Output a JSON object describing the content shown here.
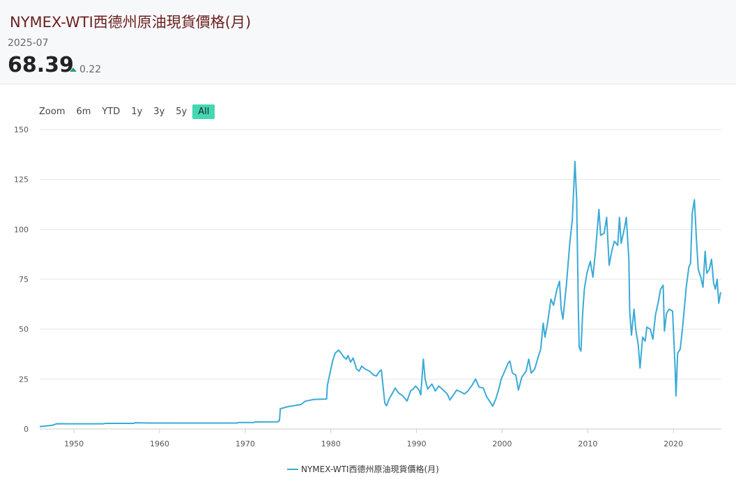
{
  "header": {
    "title": "NYMEX-WTI西德州原油現貨價格(月)",
    "period": "2025-07",
    "price": "68.39",
    "change": "0.22",
    "change_direction": "up",
    "up_color": "#20a06b"
  },
  "range_selector": {
    "zoom_label": "Zoom",
    "buttons": [
      "6m",
      "YTD",
      "1y",
      "3y",
      "5y",
      "All"
    ],
    "active": "All",
    "active_color": "#43d7b4"
  },
  "chart_data": {
    "type": "line",
    "title": "",
    "xlabel": "",
    "ylabel": "",
    "xlim": [
      1946,
      2025.6
    ],
    "ylim": [
      0,
      150
    ],
    "x_ticks": [
      1950,
      1960,
      1970,
      1980,
      1990,
      2000,
      2010,
      2020
    ],
    "y_ticks": [
      0,
      25,
      50,
      75,
      100,
      125,
      150
    ],
    "grid": "horizontal",
    "legend_position": "bottom-center",
    "series": [
      {
        "name": "NYMEX-WTI西德州原油現貨價格(月)",
        "color": "#3aaad6",
        "points": [
          [
            1946.0,
            1.17
          ],
          [
            1947.0,
            1.6
          ],
          [
            1947.5,
            1.9
          ],
          [
            1948.0,
            2.6
          ],
          [
            1950.0,
            2.57
          ],
          [
            1953.5,
            2.57
          ],
          [
            1953.6,
            2.8
          ],
          [
            1957.0,
            2.8
          ],
          [
            1957.1,
            3.09
          ],
          [
            1959.0,
            2.97
          ],
          [
            1969.0,
            2.97
          ],
          [
            1969.2,
            3.2
          ],
          [
            1971.0,
            3.2
          ],
          [
            1971.1,
            3.5
          ],
          [
            1973.8,
            3.6
          ],
          [
            1974.0,
            4.3
          ],
          [
            1974.1,
            10.1
          ],
          [
            1975.0,
            11.2
          ],
          [
            1976.5,
            12.2
          ],
          [
            1977.0,
            13.9
          ],
          [
            1978.0,
            14.8
          ],
          [
            1979.5,
            15.0
          ],
          [
            1979.6,
            22.0
          ],
          [
            1979.9,
            28.0
          ],
          [
            1980.2,
            34.0
          ],
          [
            1980.5,
            38.0
          ],
          [
            1980.9,
            39.5
          ],
          [
            1981.2,
            38.0
          ],
          [
            1981.5,
            36.0
          ],
          [
            1981.8,
            35.0
          ],
          [
            1982.0,
            36.8
          ],
          [
            1982.3,
            33.5
          ],
          [
            1982.6,
            35.5
          ],
          [
            1983.0,
            30.0
          ],
          [
            1983.3,
            29.0
          ],
          [
            1983.6,
            31.5
          ],
          [
            1984.0,
            30.0
          ],
          [
            1984.5,
            29.0
          ],
          [
            1985.0,
            27.0
          ],
          [
            1985.3,
            26.5
          ],
          [
            1985.7,
            29.0
          ],
          [
            1985.9,
            29.5
          ],
          [
            1986.1,
            21.0
          ],
          [
            1986.3,
            13.0
          ],
          [
            1986.5,
            11.6
          ],
          [
            1986.8,
            15.0
          ],
          [
            1987.2,
            18.0
          ],
          [
            1987.5,
            20.5
          ],
          [
            1987.9,
            18.0
          ],
          [
            1988.3,
            17.0
          ],
          [
            1988.7,
            15.0
          ],
          [
            1988.9,
            14.0
          ],
          [
            1989.3,
            19.0
          ],
          [
            1989.6,
            20.0
          ],
          [
            1989.9,
            21.5
          ],
          [
            1990.3,
            19.5
          ],
          [
            1990.5,
            17.0
          ],
          [
            1990.8,
            35.0
          ],
          [
            1991.0,
            25.0
          ],
          [
            1991.3,
            20.0
          ],
          [
            1991.8,
            22.5
          ],
          [
            1992.2,
            19.0
          ],
          [
            1992.6,
            21.5
          ],
          [
            1993.0,
            20.0
          ],
          [
            1993.6,
            17.5
          ],
          [
            1993.9,
            14.5
          ],
          [
            1994.3,
            17.0
          ],
          [
            1994.7,
            19.5
          ],
          [
            1995.2,
            18.5
          ],
          [
            1995.6,
            17.5
          ],
          [
            1996.0,
            19.0
          ],
          [
            1996.5,
            22.0
          ],
          [
            1996.9,
            25.0
          ],
          [
            1997.3,
            21.0
          ],
          [
            1997.8,
            20.5
          ],
          [
            1998.2,
            16.0
          ],
          [
            1998.6,
            13.5
          ],
          [
            1998.9,
            11.4
          ],
          [
            1999.3,
            15.5
          ],
          [
            1999.6,
            20.0
          ],
          [
            1999.9,
            25.0
          ],
          [
            2000.3,
            29.0
          ],
          [
            2000.7,
            33.0
          ],
          [
            2000.9,
            34.0
          ],
          [
            2001.2,
            28.0
          ],
          [
            2001.6,
            27.0
          ],
          [
            2001.9,
            19.5
          ],
          [
            2002.3,
            26.0
          ],
          [
            2002.8,
            29.0
          ],
          [
            2003.1,
            35.0
          ],
          [
            2003.4,
            28.0
          ],
          [
            2003.8,
            30.0
          ],
          [
            2004.2,
            36.0
          ],
          [
            2004.5,
            40.0
          ],
          [
            2004.8,
            53.0
          ],
          [
            2005.0,
            46.0
          ],
          [
            2005.3,
            53.0
          ],
          [
            2005.7,
            65.0
          ],
          [
            2006.0,
            62.0
          ],
          [
            2006.4,
            70.0
          ],
          [
            2006.7,
            74.0
          ],
          [
            2006.9,
            60.0
          ],
          [
            2007.1,
            55.0
          ],
          [
            2007.5,
            72.0
          ],
          [
            2007.9,
            93.0
          ],
          [
            2008.2,
            105.0
          ],
          [
            2008.5,
            134.0
          ],
          [
            2008.7,
            115.0
          ],
          [
            2008.9,
            60.0
          ],
          [
            2009.0,
            41.0
          ],
          [
            2009.2,
            39.0
          ],
          [
            2009.4,
            58.0
          ],
          [
            2009.6,
            70.0
          ],
          [
            2009.9,
            78.0
          ],
          [
            2010.3,
            84.0
          ],
          [
            2010.6,
            76.0
          ],
          [
            2010.9,
            89.0
          ],
          [
            2011.3,
            110.0
          ],
          [
            2011.5,
            97.0
          ],
          [
            2011.9,
            98.0
          ],
          [
            2012.2,
            106.0
          ],
          [
            2012.5,
            82.0
          ],
          [
            2012.8,
            89.0
          ],
          [
            2013.1,
            94.0
          ],
          [
            2013.5,
            92.0
          ],
          [
            2013.7,
            106.0
          ],
          [
            2013.9,
            93.0
          ],
          [
            2014.3,
            101.0
          ],
          [
            2014.5,
            106.0
          ],
          [
            2014.8,
            85.0
          ],
          [
            2014.9,
            59.0
          ],
          [
            2015.1,
            47.0
          ],
          [
            2015.4,
            60.0
          ],
          [
            2015.6,
            50.0
          ],
          [
            2015.9,
            42.0
          ],
          [
            2016.1,
            30.5
          ],
          [
            2016.4,
            46.0
          ],
          [
            2016.7,
            44.0
          ],
          [
            2016.9,
            51.0
          ],
          [
            2017.3,
            50.0
          ],
          [
            2017.6,
            45.0
          ],
          [
            2017.9,
            57.0
          ],
          [
            2018.2,
            63.0
          ],
          [
            2018.5,
            70.0
          ],
          [
            2018.8,
            72.0
          ],
          [
            2018.95,
            49.0
          ],
          [
            2019.2,
            58.0
          ],
          [
            2019.5,
            60.0
          ],
          [
            2019.9,
            59.0
          ],
          [
            2020.2,
            30.0
          ],
          [
            2020.3,
            16.5
          ],
          [
            2020.5,
            38.0
          ],
          [
            2020.8,
            40.0
          ],
          [
            2021.1,
            52.0
          ],
          [
            2021.5,
            71.0
          ],
          [
            2021.8,
            81.0
          ],
          [
            2022.0,
            83.0
          ],
          [
            2022.2,
            108.0
          ],
          [
            2022.45,
            114.8
          ],
          [
            2022.7,
            94.0
          ],
          [
            2022.9,
            80.0
          ],
          [
            2023.2,
            76.0
          ],
          [
            2023.45,
            71.0
          ],
          [
            2023.7,
            89.0
          ],
          [
            2023.9,
            78.0
          ],
          [
            2024.2,
            80.0
          ],
          [
            2024.45,
            85.0
          ],
          [
            2024.7,
            73.0
          ],
          [
            2024.9,
            70.0
          ],
          [
            2025.1,
            75.0
          ],
          [
            2025.3,
            63.0
          ],
          [
            2025.5,
            68.17
          ],
          [
            2025.58,
            68.39
          ]
        ]
      }
    ]
  }
}
